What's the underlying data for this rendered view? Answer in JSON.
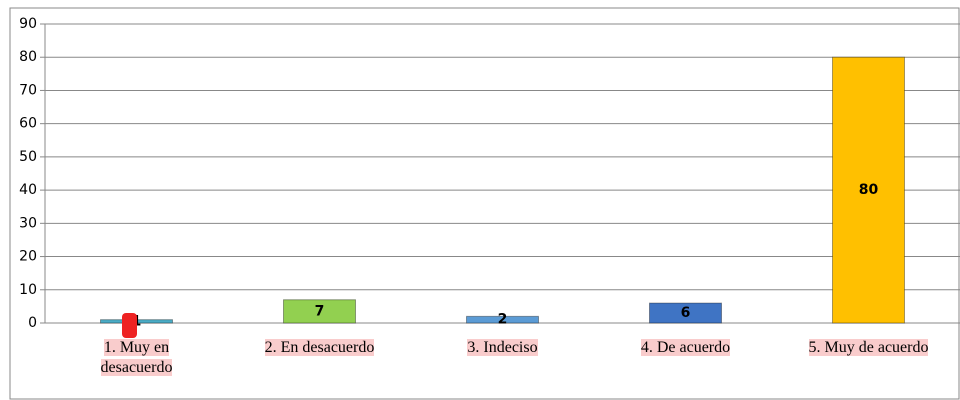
{
  "chart_data": {
    "type": "bar",
    "categories": [
      "1. Muy en desacuerdo",
      "2. En desacuerdo",
      "3. Indeciso",
      "4. De acuerdo",
      "5. Muy de acuerdo"
    ],
    "values": [
      1,
      7,
      2,
      6,
      80
    ],
    "colors": [
      "#4bacc6",
      "#92d050",
      "#5b9bd5",
      "#3f74c4",
      "#ffc000"
    ],
    "ylim": [
      0,
      90
    ],
    "yticks": [
      0,
      10,
      20,
      30,
      40,
      50,
      60,
      70,
      80,
      90
    ],
    "grid": true
  }
}
